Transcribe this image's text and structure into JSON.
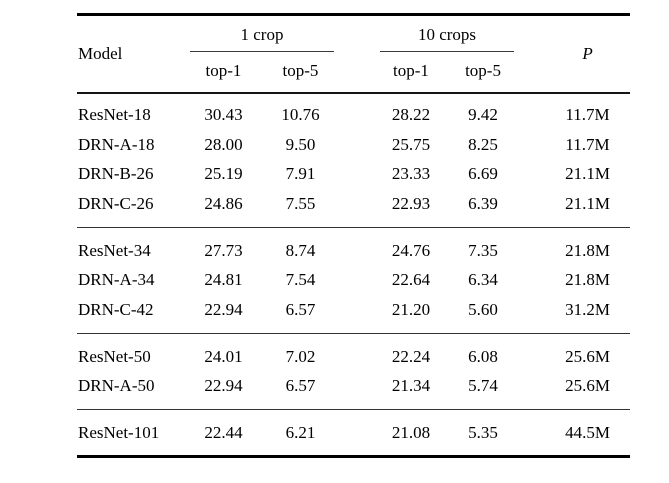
{
  "page": {
    "background": "#ffffff",
    "text_color": "#000000"
  },
  "table": {
    "header": {
      "model_label": "Model",
      "crop1": {
        "label": "1 crop",
        "sub": [
          "top-1",
          "top-5"
        ]
      },
      "crop10": {
        "label": "10 crops",
        "sub": [
          "top-1",
          "top-5"
        ]
      },
      "params_label": "P"
    },
    "groups": [
      {
        "rows": [
          {
            "model": "ResNet-18",
            "crop1_top1": "30.43",
            "crop1_top5": "10.76",
            "crop10_top1": "28.22",
            "crop10_top5": "9.42",
            "params": "11.7M"
          },
          {
            "model": "DRN-A-18",
            "crop1_top1": "28.00",
            "crop1_top5": "9.50",
            "crop10_top1": "25.75",
            "crop10_top5": "8.25",
            "params": "11.7M"
          },
          {
            "model": "DRN-B-26",
            "crop1_top1": "25.19",
            "crop1_top5": "7.91",
            "crop10_top1": "23.33",
            "crop10_top5": "6.69",
            "params": "21.1M"
          },
          {
            "model": "DRN-C-26",
            "crop1_top1": "24.86",
            "crop1_top5": "7.55",
            "crop10_top1": "22.93",
            "crop10_top5": "6.39",
            "params": "21.1M"
          }
        ]
      },
      {
        "rows": [
          {
            "model": "ResNet-34",
            "crop1_top1": "27.73",
            "crop1_top5": "8.74",
            "crop10_top1": "24.76",
            "crop10_top5": "7.35",
            "params": "21.8M"
          },
          {
            "model": "DRN-A-34",
            "crop1_top1": "24.81",
            "crop1_top5": "7.54",
            "crop10_top1": "22.64",
            "crop10_top5": "6.34",
            "params": "21.8M"
          },
          {
            "model": "DRN-C-42",
            "crop1_top1": "22.94",
            "crop1_top5": "6.57",
            "crop10_top1": "21.20",
            "crop10_top5": "5.60",
            "params": "31.2M"
          }
        ]
      },
      {
        "rows": [
          {
            "model": "ResNet-50",
            "crop1_top1": "24.01",
            "crop1_top5": "7.02",
            "crop10_top1": "22.24",
            "crop10_top5": "6.08",
            "params": "25.6M"
          },
          {
            "model": "DRN-A-50",
            "crop1_top1": "22.94",
            "crop1_top5": "6.57",
            "crop10_top1": "21.34",
            "crop10_top5": "5.74",
            "params": "25.6M"
          }
        ]
      },
      {
        "rows": [
          {
            "model": "ResNet-101",
            "crop1_top1": "22.44",
            "crop1_top5": "6.21",
            "crop10_top1": "21.08",
            "crop10_top5": "5.35",
            "params": "44.5M"
          }
        ]
      }
    ]
  }
}
